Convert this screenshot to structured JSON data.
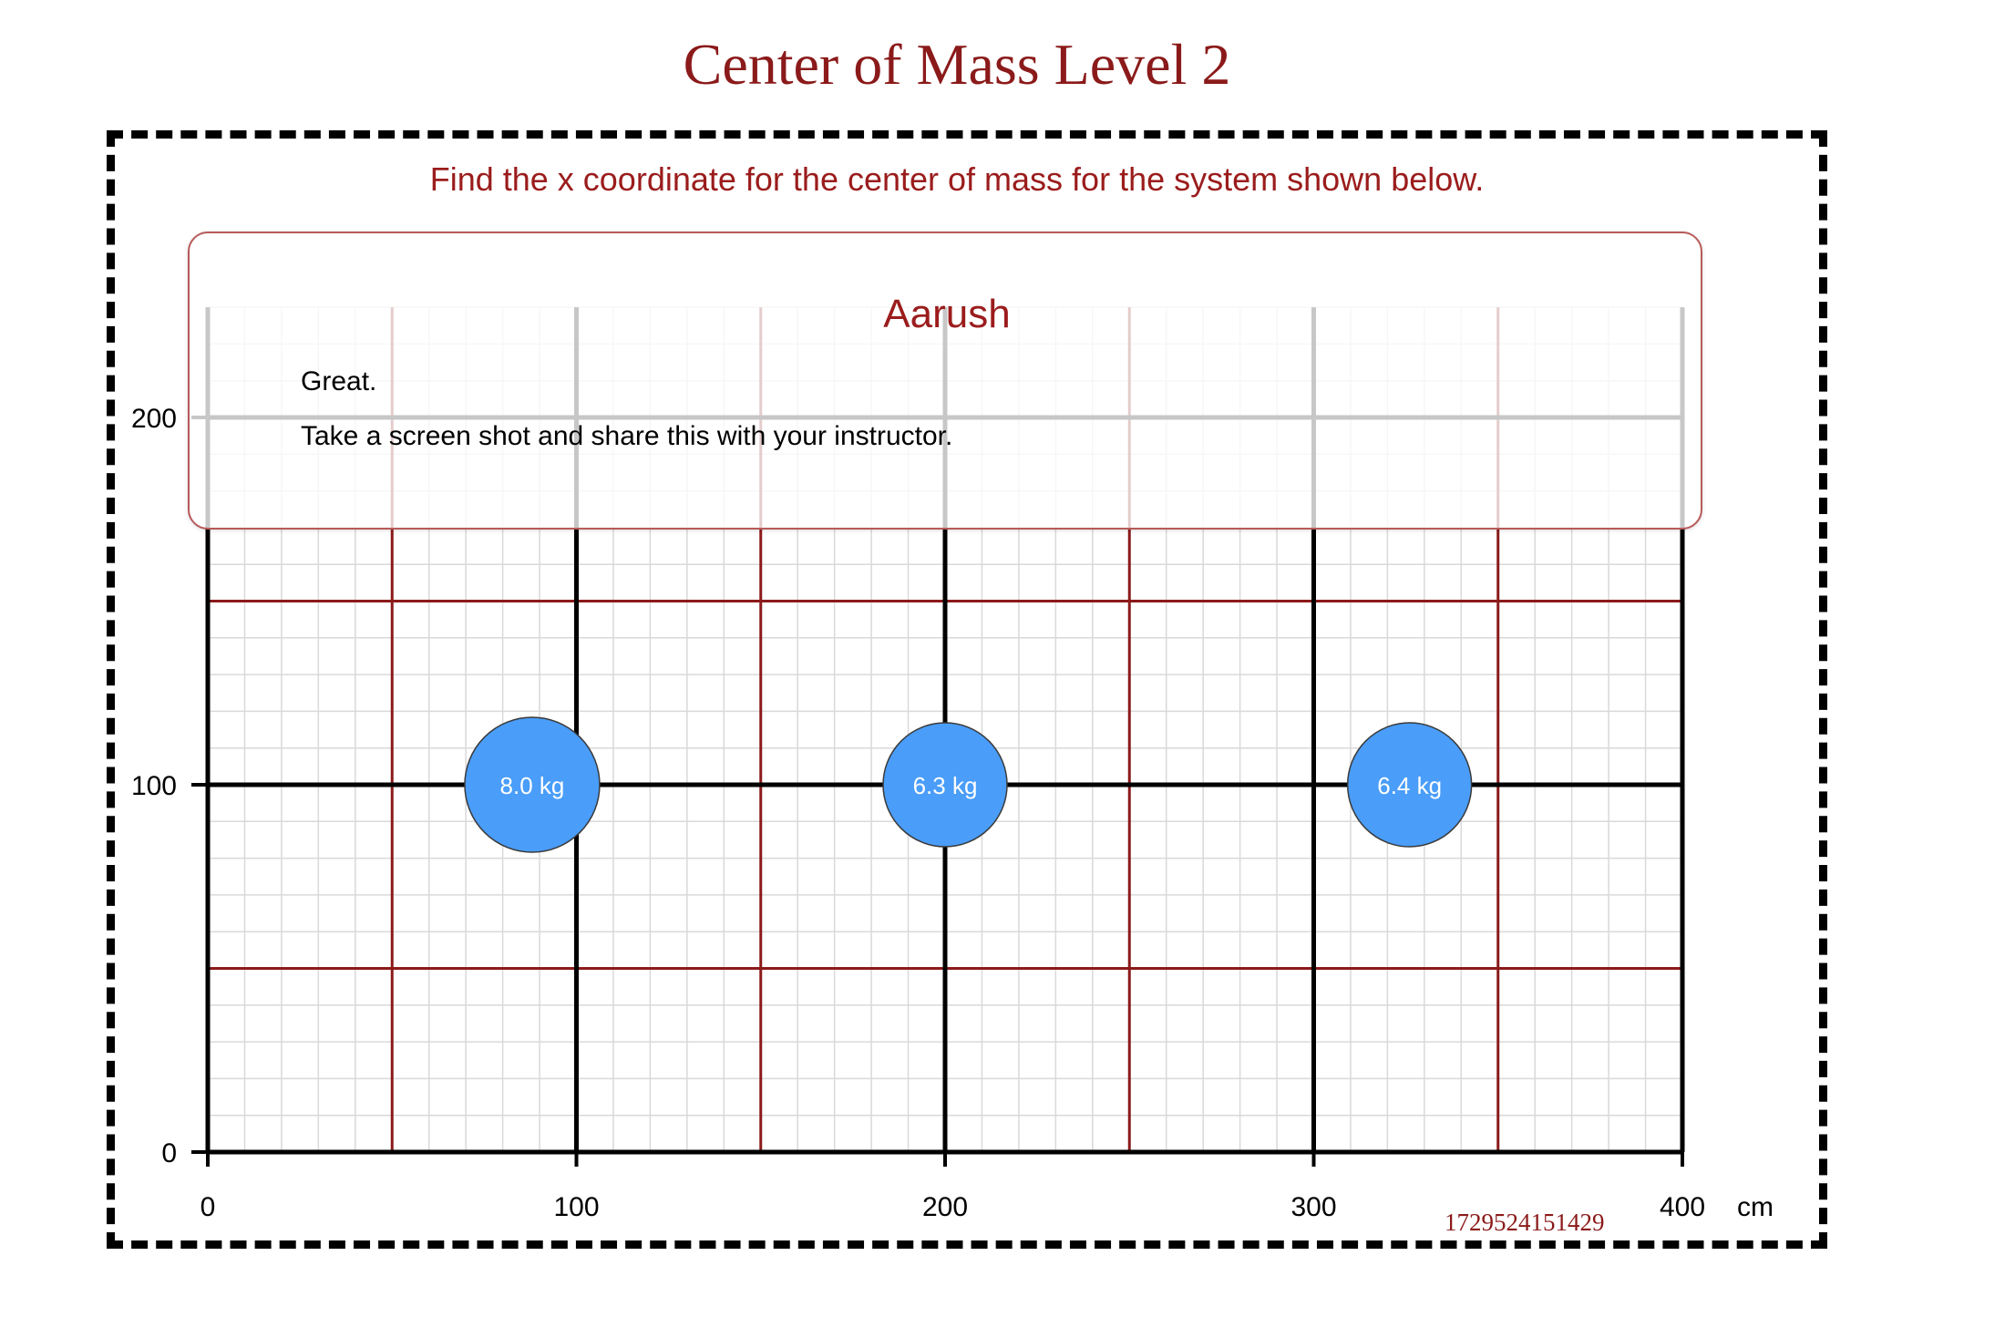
{
  "header": {
    "title": "Center of Mass Level 2"
  },
  "puzzle": {
    "instruction": "Find the x coordinate for the center of mass for the system shown below."
  },
  "graph": {
    "x_ticks": [
      "0",
      "100",
      "200",
      "300",
      "400"
    ],
    "x_unit": "cm",
    "y_ticks": [
      "0",
      "100",
      "200"
    ],
    "masses": [
      {
        "label": "8.0 kg",
        "x": 88,
        "y": 100
      },
      {
        "label": "6.3 kg",
        "x": 200,
        "y": 100
      },
      {
        "label": "6.4 kg",
        "x": 326,
        "y": 100
      }
    ],
    "colors": {
      "major_grid": "#000000",
      "mid_grid": "#8b1a1a",
      "minor_grid": "#d9d9d9",
      "mass_fill": "#4a9df8",
      "mass_text": "#ffffff"
    }
  },
  "result": {
    "name": "Aarush",
    "line1": "Great.",
    "line2": "Take a screen shot and share this with your instructor."
  },
  "footer": {
    "timestamp": "1729524151429"
  }
}
